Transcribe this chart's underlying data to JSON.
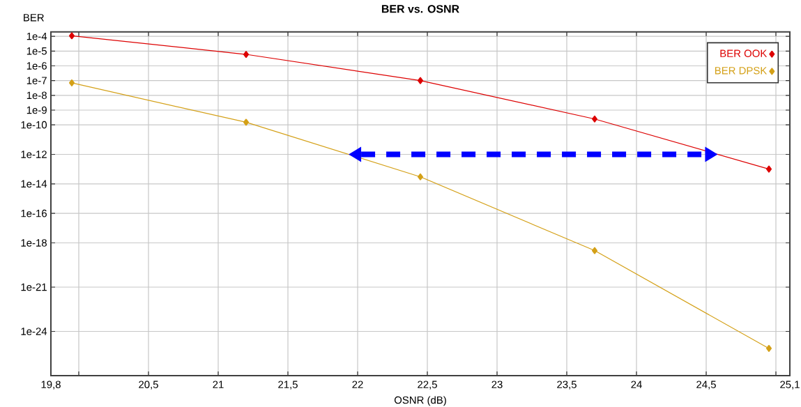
{
  "chart_data": {
    "type": "line",
    "title": "BER vs. OSNR",
    "xlabel": "OSNR (dB)",
    "ylabel": "BER",
    "x": [
      19.95,
      21.2,
      22.45,
      23.7,
      24.95
    ],
    "series": [
      {
        "name": "BER OOK",
        "color": "#dd0000",
        "values": [
          0.00011,
          6e-06,
          1e-07,
          2.5e-10,
          1e-13
        ]
      },
      {
        "name": "BER DPSK",
        "color": "#d4a017",
        "values": [
          7e-08,
          1.5e-10,
          3e-14,
          3e-19,
          7e-26
        ]
      }
    ],
    "xlim": [
      19.8,
      25.1
    ],
    "xticks": [
      {
        "value": 19.8,
        "label": "19,8"
      },
      {
        "value": 20,
        "label": null
      },
      {
        "value": 20.5,
        "label": "20,5"
      },
      21,
      {
        "value": 21.5,
        "label": "21,5"
      },
      22,
      {
        "value": 22.5,
        "label": "22,5"
      },
      23,
      {
        "value": 23.5,
        "label": "23,5"
      },
      24,
      {
        "value": 24.5,
        "label": "24,5"
      },
      {
        "value": 25,
        "label": null
      },
      {
        "value": 25.1,
        "label": "25,1"
      }
    ],
    "ylim": [
      1e-27,
      0.0002
    ],
    "log": true,
    "yticks": [
      {
        "value": 0.0001,
        "label": "1e-4"
      },
      {
        "value": 1e-05,
        "label": "1e-5"
      },
      {
        "value": 1e-06,
        "label": "1e-6"
      },
      {
        "value": 1e-07,
        "label": "1e-7"
      },
      {
        "value": 1e-08,
        "label": "1e-8"
      },
      {
        "value": 1e-09,
        "label": "1e-9"
      },
      {
        "value": 1e-10,
        "label": "1e-10"
      },
      {
        "value": 1e-12,
        "label": "1e-12"
      },
      {
        "value": 1e-14,
        "label": "1e-14"
      },
      {
        "value": 1e-16,
        "label": "1e-16"
      },
      {
        "value": 1e-18,
        "label": "1e-18"
      },
      {
        "value": 1e-21,
        "label": "1e-21"
      },
      {
        "value": 1e-24,
        "label": "1e-24"
      }
    ],
    "ref_lines": [
      {
        "axis": "y",
        "value": 1e-12,
        "color": "#0000ff",
        "line_style": "dashed"
      }
    ],
    "grid": true,
    "legend": "top right",
    "marker": "diamond",
    "line_style": "solid"
  }
}
